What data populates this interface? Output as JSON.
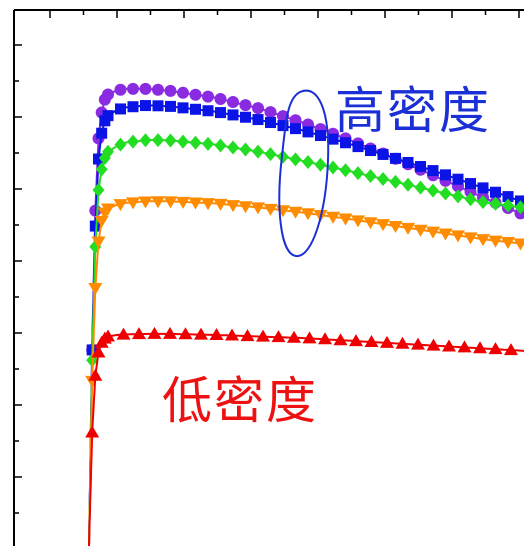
{
  "chart_data": {
    "type": "line",
    "title": "",
    "xlabel": "",
    "ylabel": "",
    "xlim": [
      0,
      100
    ],
    "ylim": [
      0,
      100
    ],
    "grid": false,
    "x": [
      0,
      1,
      2,
      3,
      4,
      5,
      6,
      8,
      10,
      15,
      20,
      30,
      40,
      50,
      60,
      70,
      80,
      90,
      100
    ],
    "series": [
      {
        "color": "#8a2be2",
        "marker": "circle",
        "values": [
          0,
          38,
          65,
          79,
          84,
          86.5,
          87.5,
          88.3,
          88.6,
          88.6,
          88.2,
          86.9,
          84.8,
          82.0,
          78.8,
          75.3,
          71.5,
          67.7,
          64.0
        ]
      },
      {
        "color": "#0a14e6",
        "marker": "square",
        "values": [
          0,
          38,
          62,
          75,
          80,
          82.4,
          83.4,
          84.5,
          85.0,
          85.4,
          85.2,
          84.2,
          82.6,
          80.5,
          78.0,
          75.3,
          72.5,
          69.5,
          66.5
        ]
      },
      {
        "color": "#22dd22",
        "marker": "diamond",
        "values": [
          0,
          36,
          58,
          69,
          73,
          75.2,
          76.4,
          77.5,
          78.2,
          78.7,
          78.6,
          77.8,
          76.4,
          74.6,
          72.7,
          70.7,
          68.7,
          66.7,
          65.5
        ]
      },
      {
        "color": "#ff8c00",
        "marker": "triangle-down",
        "values": [
          0,
          32,
          50,
          59,
          63,
          64.6,
          65.4,
          66.1,
          66.5,
          66.8,
          66.8,
          66.4,
          65.6,
          64.6,
          63.4,
          62.1,
          60.8,
          59.5,
          58.5
        ]
      },
      {
        "color": "#ee0000",
        "marker": "triangle-up",
        "values": [
          0,
          22,
          33,
          37.5,
          39.4,
          40.2,
          40.6,
          40.9,
          41.0,
          41.1,
          41.1,
          40.9,
          40.6,
          40.3,
          39.8,
          39.3,
          38.8,
          38.3,
          37.8
        ]
      }
    ],
    "annotations": [
      {
        "text": "高密度",
        "color": "#1a2fd6"
      },
      {
        "text": "低密度",
        "color": "#ee1111"
      }
    ]
  }
}
